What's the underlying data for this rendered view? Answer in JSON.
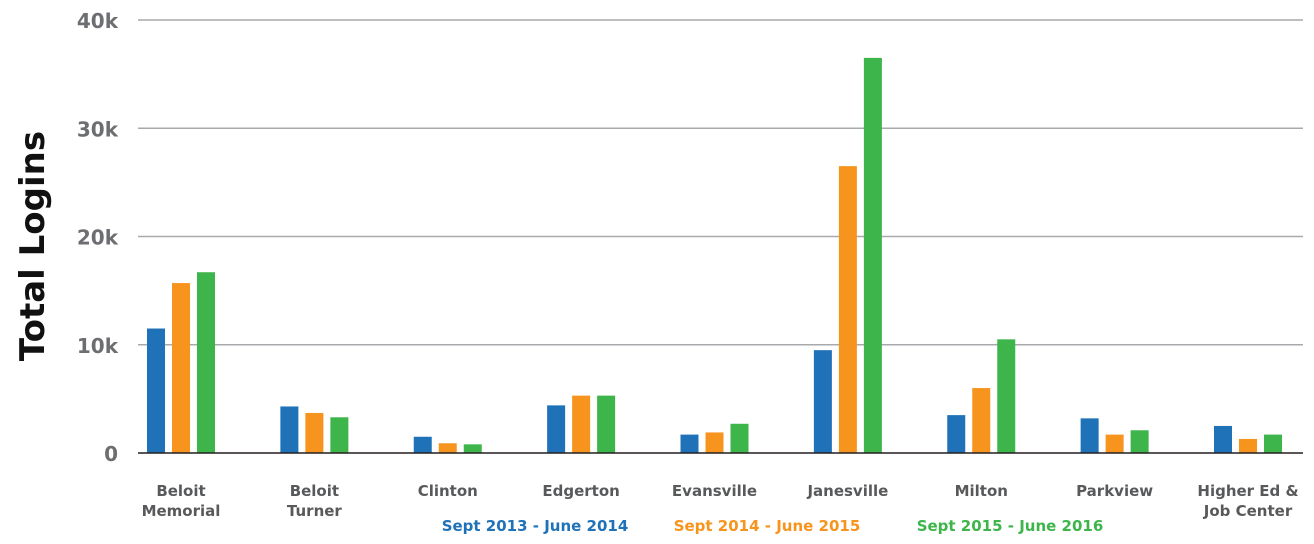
{
  "chart_data": {
    "type": "bar",
    "title": "",
    "xlabel": "",
    "ylabel": "Total Logins",
    "ylim": [
      0,
      40000
    ],
    "yticks": [
      {
        "value": 0,
        "label": "0"
      },
      {
        "value": 10000,
        "label": "10k"
      },
      {
        "value": 20000,
        "label": "20k"
      },
      {
        "value": 30000,
        "label": "30k"
      },
      {
        "value": 40000,
        "label": "40k"
      }
    ],
    "grid": true,
    "legend_placement": "bottom",
    "categories": [
      [
        "Beloit",
        "Memorial"
      ],
      [
        "Beloit",
        "Turner"
      ],
      [
        "Clinton"
      ],
      [
        "Edgerton"
      ],
      [
        "Evansville"
      ],
      [
        "Janesville"
      ],
      [
        "Milton"
      ],
      [
        "Parkview"
      ],
      [
        "Higher Ed &",
        "Job Center"
      ]
    ],
    "series": [
      {
        "name": "Sept 2013 - June 2014",
        "color": "#1f72b8",
        "values": [
          11500,
          4300,
          1500,
          4400,
          1700,
          9500,
          3500,
          3200,
          2500
        ]
      },
      {
        "name": "Sept 2014 - June 2015",
        "color": "#f7941d",
        "values": [
          15700,
          3700,
          900,
          5300,
          1900,
          26500,
          6000,
          1700,
          1300
        ]
      },
      {
        "name": "Sept 2015 - June 2016",
        "color": "#3db54a",
        "values": [
          16700,
          3300,
          800,
          5300,
          2700,
          36500,
          10500,
          2100,
          1700
        ]
      }
    ]
  }
}
